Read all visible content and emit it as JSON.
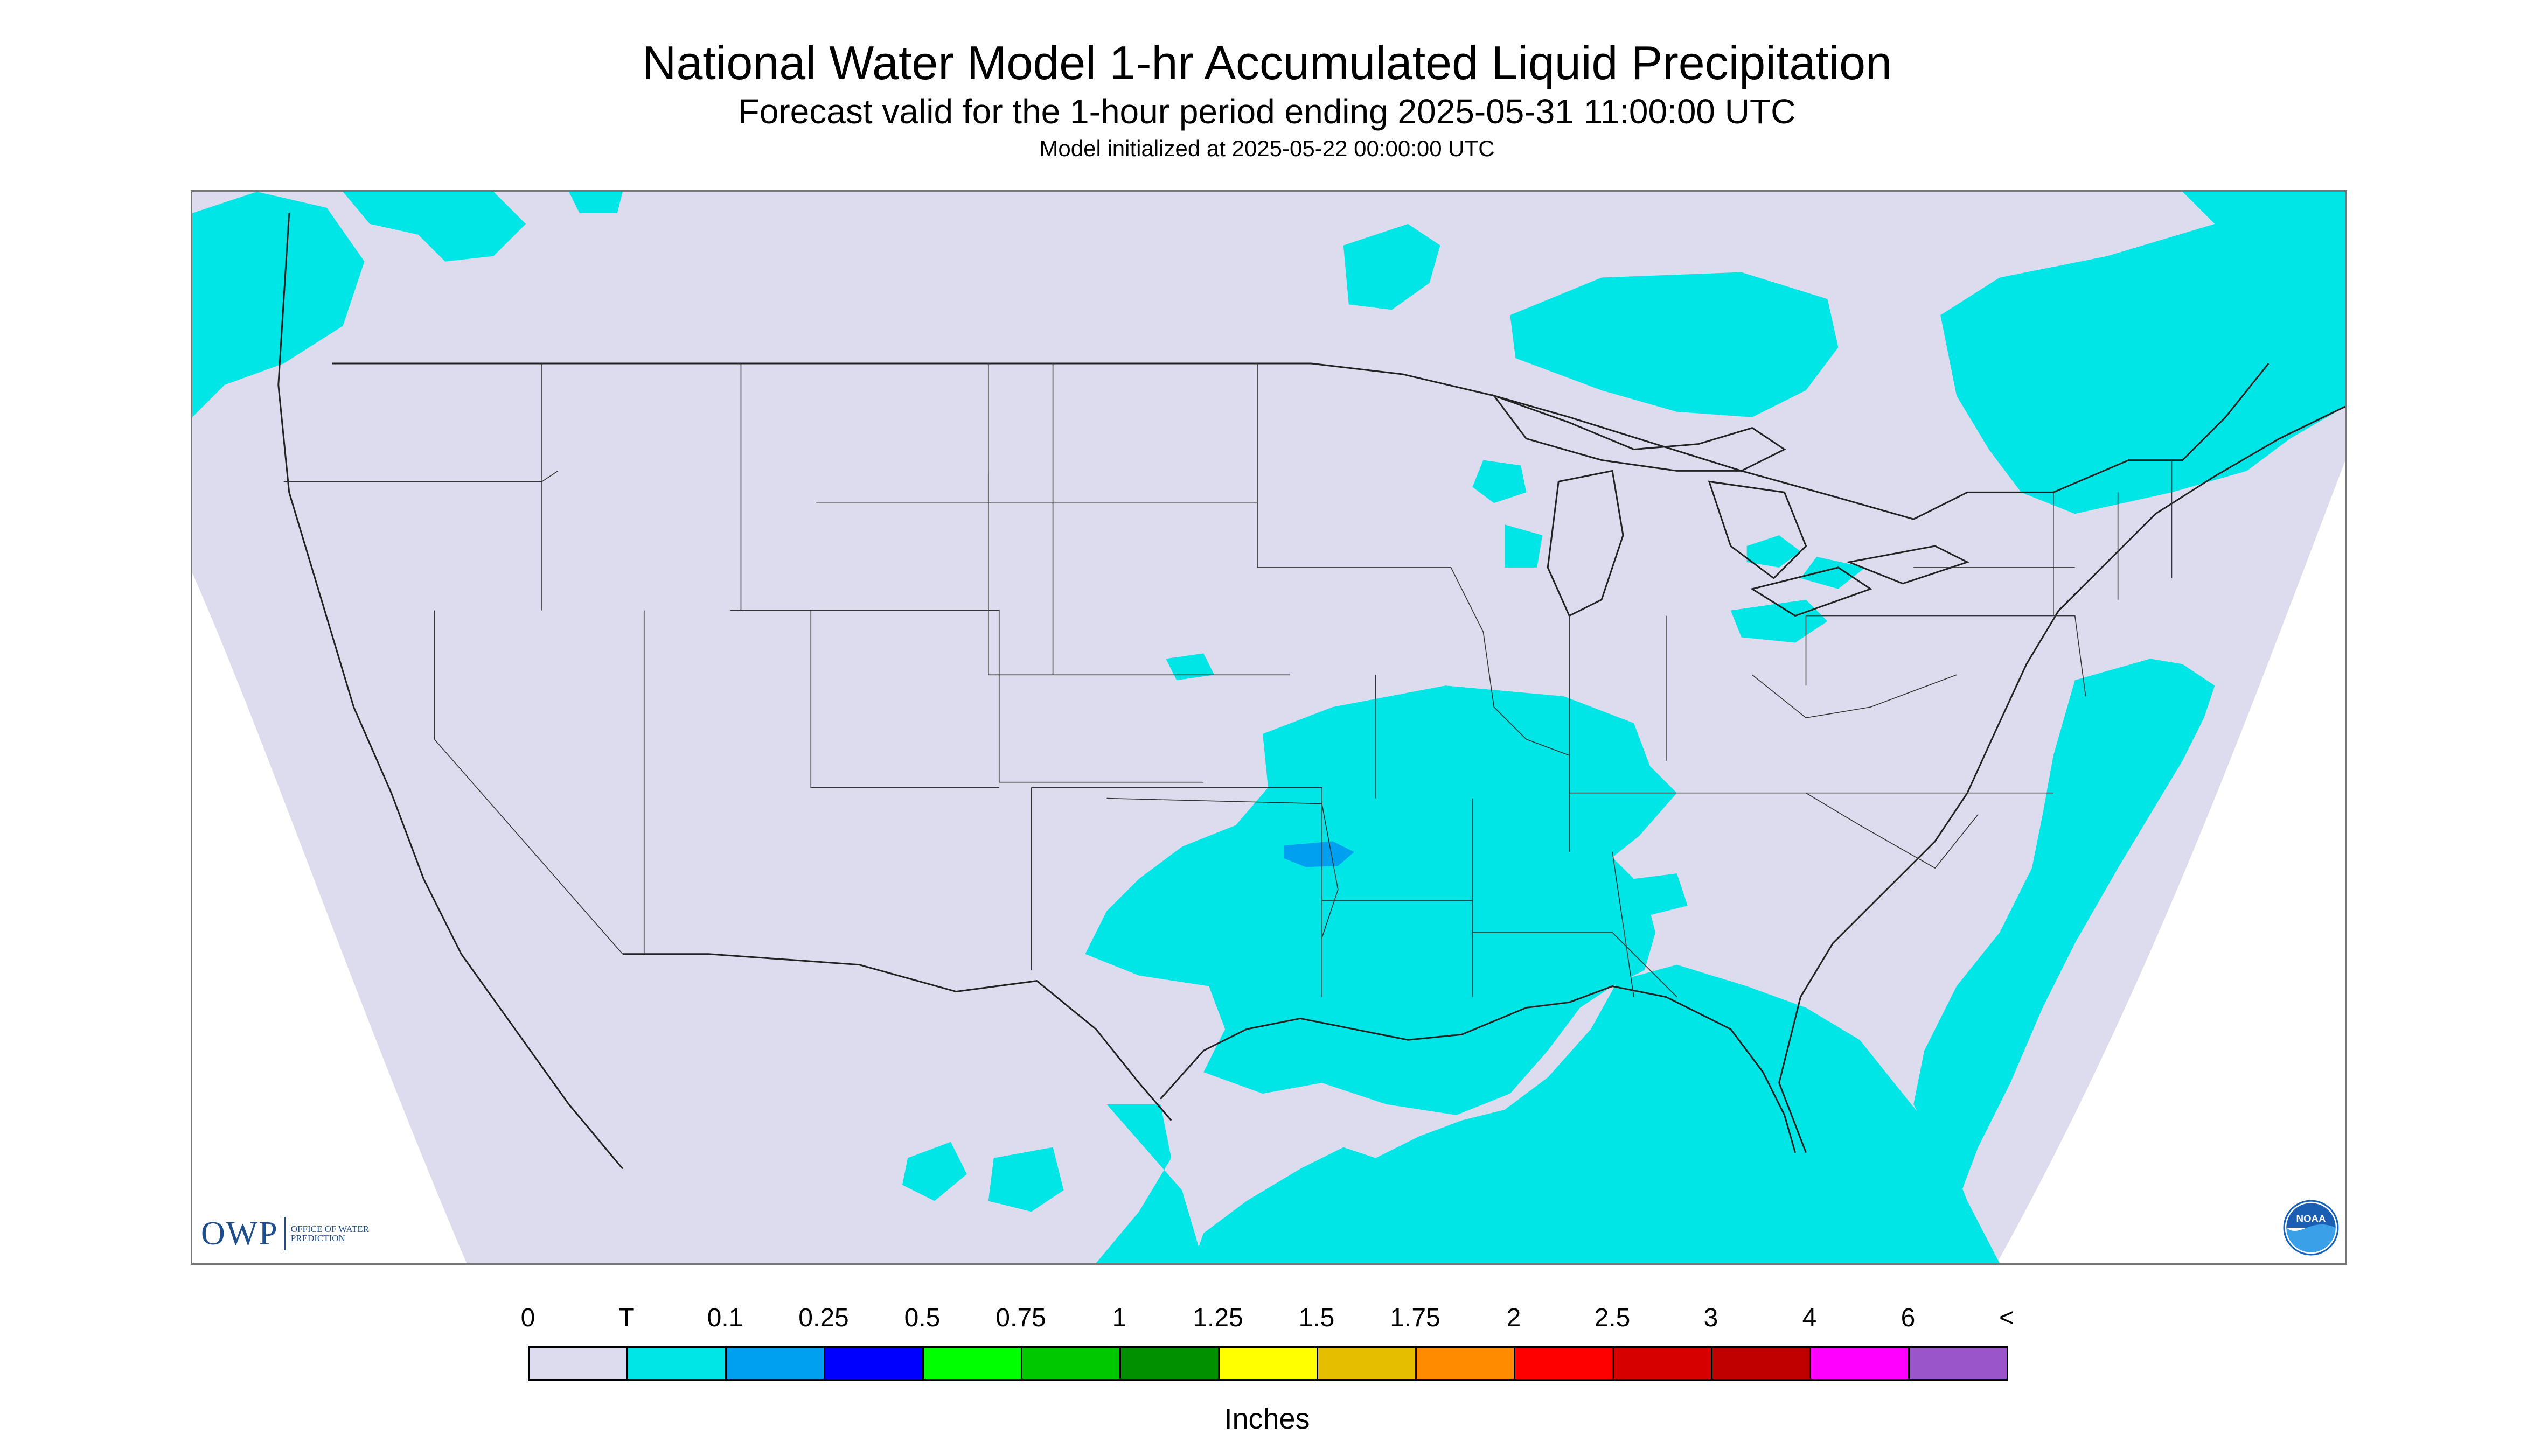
{
  "header": {
    "title": "National Water Model 1-hr Accumulated Liquid Precipitation",
    "subtitle": "Forecast valid for the 1-hour period ending 2025-05-31 11:00:00 UTC",
    "init_line": "Model initialized at 2025-05-22 00:00:00 UTC"
  },
  "logos": {
    "owp_letters": "OWP",
    "owp_text": "Office of Water Prediction",
    "noaa_text": "NOAA"
  },
  "legend": {
    "labels": [
      "0",
      "T",
      "0.1",
      "0.25",
      "0.5",
      "0.75",
      "1",
      "1.25",
      "1.5",
      "1.75",
      "2",
      "2.5",
      "3",
      "4",
      "6",
      "<"
    ],
    "colors": [
      "#dcdcee",
      "#00e5e5",
      "#00a0f0",
      "#0000ff",
      "#00ff00",
      "#00c800",
      "#009000",
      "#ffff00",
      "#e6be00",
      "#ff8c00",
      "#ff0000",
      "#d60000",
      "#c00000",
      "#ff00ff",
      "#9955c9"
    ],
    "units": "Inches"
  },
  "map": {
    "projection": "Lambert conformal, CONUS",
    "no_data_color": "#ffffff",
    "zero_precip_color": "#dcdcee",
    "trace_color": "#00e5e5",
    "light_color": "#00a0f0",
    "max_region": "central Oklahoma"
  }
}
